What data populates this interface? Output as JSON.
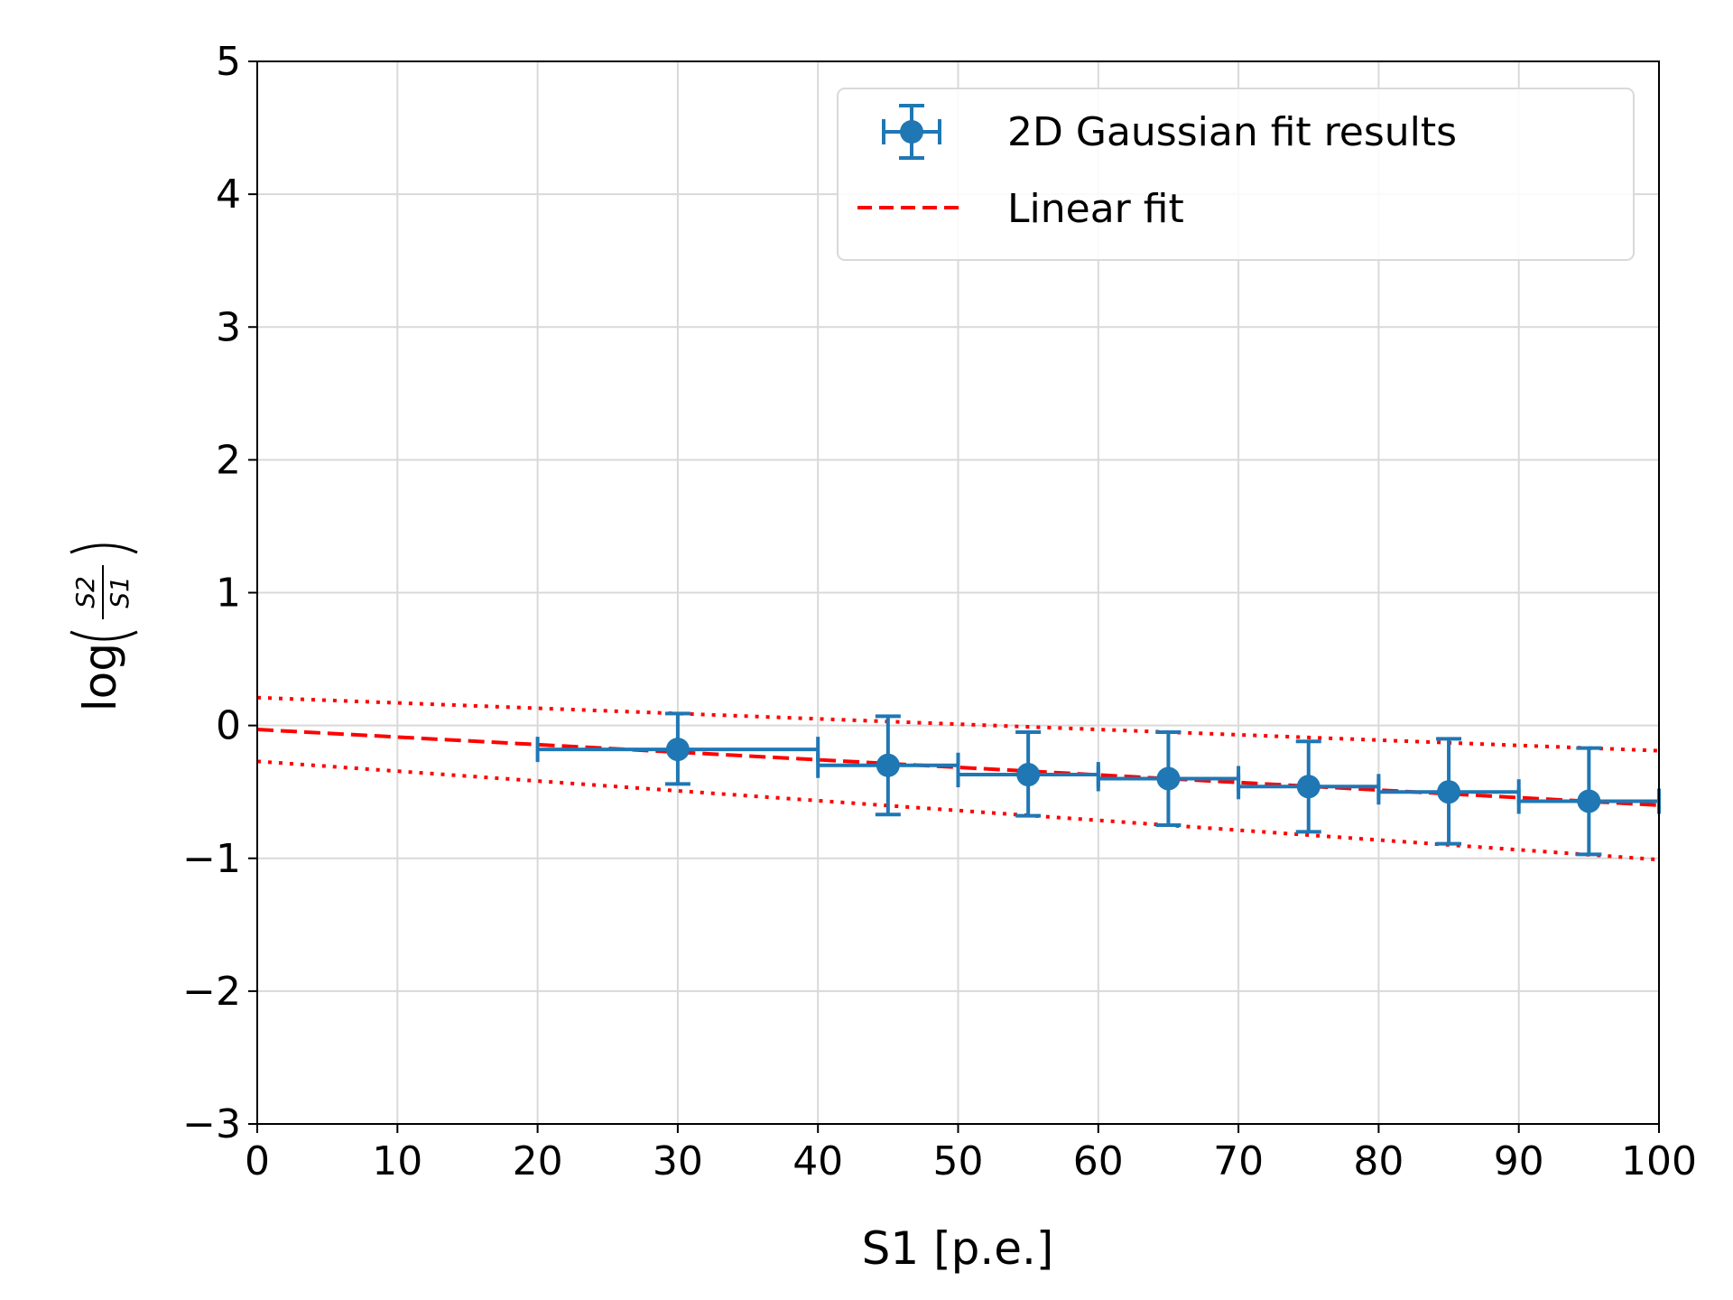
{
  "chart_data": {
    "type": "scatter",
    "title": "",
    "xlabel": "S1 [p.e.]",
    "ylabel": {
      "prefix": "log",
      "numerator": "S2",
      "denominator": "S1"
    },
    "xlim": [
      0,
      100
    ],
    "ylim": [
      -3,
      5
    ],
    "x_ticks": [
      0,
      10,
      20,
      30,
      40,
      50,
      60,
      70,
      80,
      90,
      100
    ],
    "y_ticks": [
      -3,
      -2,
      -1,
      0,
      1,
      2,
      3,
      4,
      5
    ],
    "x_tick_labels": [
      "0",
      "10",
      "20",
      "30",
      "40",
      "50",
      "60",
      "70",
      "80",
      "90",
      "100"
    ],
    "y_tick_labels": [
      "−3",
      "−2",
      "−1",
      "0",
      "1",
      "2",
      "3",
      "4",
      "5"
    ],
    "grid": true,
    "legend_position": "top-right",
    "series": [
      {
        "name": "2D Gaussian fit results",
        "kind": "errorbar",
        "color": "#1f77b4",
        "points": [
          {
            "x": 30,
            "y": -0.18,
            "xerr": 10,
            "yerr_low": 0.26,
            "yerr_high": 0.27
          },
          {
            "x": 45,
            "y": -0.3,
            "xerr": 5,
            "yerr_low": 0.37,
            "yerr_high": 0.37
          },
          {
            "x": 55,
            "y": -0.37,
            "xerr": 5,
            "yerr_low": 0.31,
            "yerr_high": 0.32
          },
          {
            "x": 65,
            "y": -0.4,
            "xerr": 5,
            "yerr_low": 0.35,
            "yerr_high": 0.35
          },
          {
            "x": 75,
            "y": -0.46,
            "xerr": 5,
            "yerr_low": 0.34,
            "yerr_high": 0.34
          },
          {
            "x": 85,
            "y": -0.5,
            "xerr": 5,
            "yerr_low": 0.39,
            "yerr_high": 0.4
          },
          {
            "x": 95,
            "y": -0.57,
            "xerr": 5,
            "yerr_low": 0.4,
            "yerr_high": 0.4
          }
        ]
      },
      {
        "name": "Linear fit",
        "kind": "line",
        "style": "dashed",
        "color": "#ff0000",
        "x": [
          0,
          100
        ],
        "y": [
          -0.03,
          -0.6
        ]
      },
      {
        "kind": "line",
        "style": "dotted",
        "color": "#ff0000",
        "x": [
          0,
          100
        ],
        "y": [
          0.21,
          -0.19
        ]
      },
      {
        "kind": "line",
        "style": "dotted",
        "color": "#ff0000",
        "x": [
          0,
          100
        ],
        "y": [
          -0.27,
          -1.01
        ]
      }
    ]
  }
}
